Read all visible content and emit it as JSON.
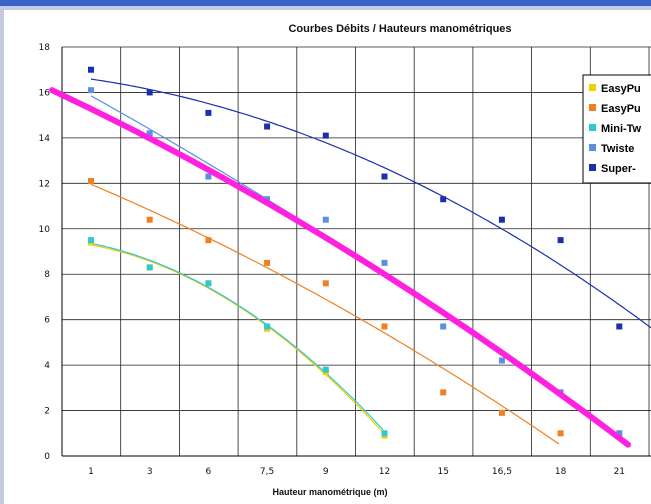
{
  "chart_data": {
    "type": "scatter",
    "title": "Courbes Débits / Hauteurs manométriques",
    "xlabel": "Hauteur manométrique (m)",
    "ylabel": "",
    "categories": [
      "1",
      "3",
      "6",
      "7,5",
      "9",
      "12",
      "15",
      "16,5",
      "18",
      "21"
    ],
    "ylim": [
      0,
      18
    ],
    "yticks": [
      0,
      2,
      4,
      6,
      8,
      10,
      12,
      14,
      16,
      18
    ],
    "grid": true,
    "legend_position": "right",
    "series": [
      {
        "name": "EasyPu",
        "color": "#f0d000",
        "values": [
          9.4,
          8.3,
          7.6,
          5.6,
          3.7,
          0.9,
          null,
          null,
          null,
          null
        ]
      },
      {
        "name": "EasyPu",
        "color": "#f07f20",
        "values": [
          12.1,
          10.4,
          9.5,
          8.5,
          7.6,
          5.7,
          2.8,
          1.9,
          1.0,
          null
        ]
      },
      {
        "name": "Mini-Tw",
        "color": "#30c8d0",
        "values": [
          9.5,
          8.3,
          7.6,
          5.7,
          3.8,
          1.0,
          null,
          null,
          null,
          null
        ]
      },
      {
        "name": "Twiste",
        "color": "#5b8fe0",
        "values": [
          16.1,
          14.2,
          12.3,
          11.3,
          10.4,
          8.5,
          5.7,
          4.2,
          2.8,
          1.0
        ]
      },
      {
        "name": "Super-",
        "color": "#1a2fb0",
        "values": [
          17.0,
          16.0,
          15.1,
          14.5,
          14.1,
          12.3,
          11.3,
          10.4,
          9.5,
          5.7
        ]
      }
    ],
    "annotation_line": {
      "color": "#ff20e0",
      "values_start": 16.1,
      "values_end": 0.5
    }
  }
}
